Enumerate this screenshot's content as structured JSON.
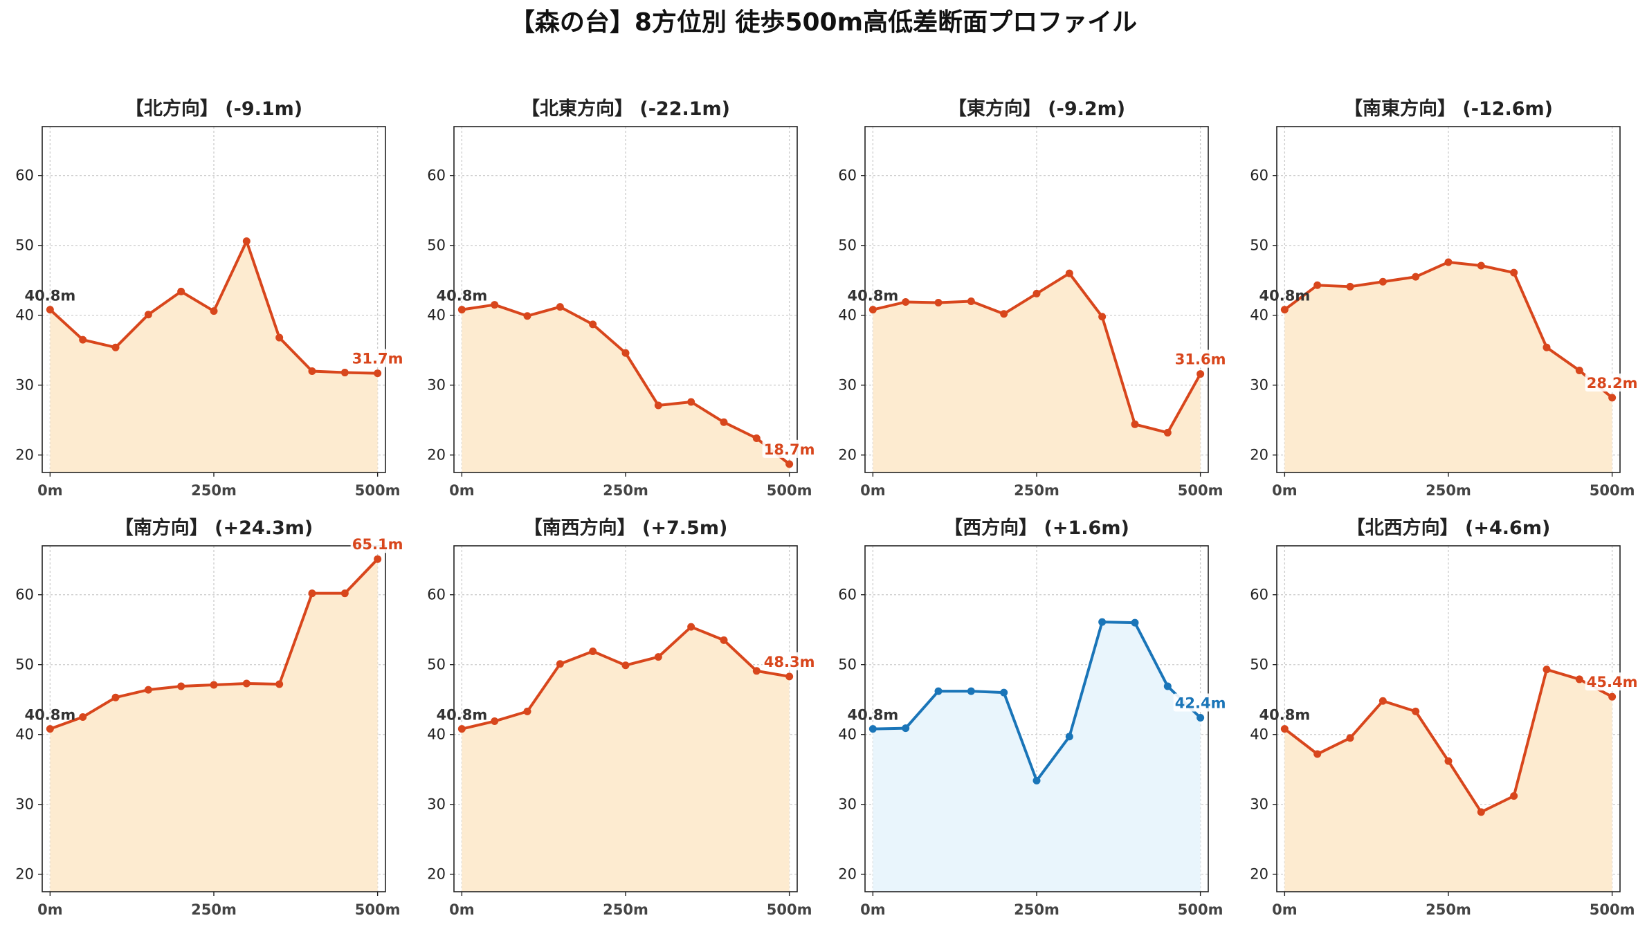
{
  "title": "【森の台】8方位別 徒歩500m高低差断面プロファイル",
  "colors": {
    "down": "#d8461c",
    "down_fill": "#fdebd0",
    "up": "#1a75b8",
    "up_fill": "#e9f5fc",
    "grid": "#cccccc"
  },
  "chart_data": [
    {
      "type": "area",
      "title": "【北方向】 (-9.1m)",
      "x": [
        0,
        50,
        100,
        150,
        200,
        250,
        300,
        350,
        400,
        450,
        500
      ],
      "y": [
        40.8,
        36.5,
        35.4,
        40.1,
        43.4,
        40.6,
        50.6,
        36.8,
        32.0,
        31.8,
        31.7
      ],
      "start_label": "40.8m",
      "end_label": "31.7m",
      "color": "#d8461c",
      "fill": "#fdebd0",
      "xticks": [
        "0m",
        "250m",
        "500m"
      ],
      "yticks": [
        20,
        30,
        40,
        50,
        60
      ],
      "ylim": [
        17.5,
        67
      ],
      "xlim": [
        -12,
        512
      ],
      "grid": true
    },
    {
      "type": "area",
      "title": "【北東方向】 (-22.1m)",
      "x": [
        0,
        50,
        100,
        150,
        200,
        250,
        300,
        350,
        400,
        450,
        500
      ],
      "y": [
        40.8,
        41.5,
        39.9,
        41.2,
        38.7,
        34.6,
        27.1,
        27.6,
        24.7,
        22.4,
        18.7
      ],
      "start_label": "40.8m",
      "end_label": "18.7m",
      "color": "#d8461c",
      "fill": "#fdebd0",
      "xticks": [
        "0m",
        "250m",
        "500m"
      ],
      "yticks": [
        20,
        30,
        40,
        50,
        60
      ],
      "ylim": [
        17.5,
        67
      ],
      "xlim": [
        -12,
        512
      ],
      "grid": true
    },
    {
      "type": "area",
      "title": "【東方向】 (-9.2m)",
      "x": [
        0,
        50,
        100,
        150,
        200,
        250,
        300,
        350,
        400,
        450,
        500
      ],
      "y": [
        40.8,
        41.9,
        41.8,
        42.0,
        40.2,
        43.1,
        46.0,
        39.8,
        24.4,
        23.2,
        31.6
      ],
      "start_label": "40.8m",
      "end_label": "31.6m",
      "color": "#d8461c",
      "fill": "#fdebd0",
      "xticks": [
        "0m",
        "250m",
        "500m"
      ],
      "yticks": [
        20,
        30,
        40,
        50,
        60
      ],
      "ylim": [
        17.5,
        67
      ],
      "xlim": [
        -12,
        512
      ],
      "grid": true
    },
    {
      "type": "area",
      "title": "【南東方向】 (-12.6m)",
      "x": [
        0,
        50,
        100,
        150,
        200,
        250,
        300,
        350,
        400,
        450,
        500
      ],
      "y": [
        40.8,
        44.3,
        44.1,
        44.8,
        45.5,
        47.6,
        47.1,
        46.1,
        35.4,
        32.1,
        28.2
      ],
      "start_label": "40.8m",
      "end_label": "28.2m",
      "color": "#d8461c",
      "fill": "#fdebd0",
      "xticks": [
        "0m",
        "250m",
        "500m"
      ],
      "yticks": [
        20,
        30,
        40,
        50,
        60
      ],
      "ylim": [
        17.5,
        67
      ],
      "xlim": [
        -12,
        512
      ],
      "grid": true
    },
    {
      "type": "area",
      "title": "【南方向】 (+24.3m)",
      "x": [
        0,
        50,
        100,
        150,
        200,
        250,
        300,
        350,
        400,
        450,
        500
      ],
      "y": [
        40.8,
        42.5,
        45.3,
        46.4,
        46.9,
        47.1,
        47.3,
        47.2,
        60.2,
        60.2,
        65.1
      ],
      "start_label": "40.8m",
      "end_label": "65.1m",
      "color": "#d8461c",
      "fill": "#fdebd0",
      "xticks": [
        "0m",
        "250m",
        "500m"
      ],
      "yticks": [
        20,
        30,
        40,
        50,
        60
      ],
      "ylim": [
        17.5,
        67
      ],
      "xlim": [
        -12,
        512
      ],
      "grid": true
    },
    {
      "type": "area",
      "title": "【南西方向】 (+7.5m)",
      "x": [
        0,
        50,
        100,
        150,
        200,
        250,
        300,
        350,
        400,
        450,
        500
      ],
      "y": [
        40.8,
        41.9,
        43.3,
        50.1,
        51.9,
        49.9,
        51.1,
        55.4,
        53.5,
        49.1,
        48.3
      ],
      "start_label": "40.8m",
      "end_label": "48.3m",
      "color": "#d8461c",
      "fill": "#fdebd0",
      "xticks": [
        "0m",
        "250m",
        "500m"
      ],
      "yticks": [
        20,
        30,
        40,
        50,
        60
      ],
      "ylim": [
        17.5,
        67
      ],
      "xlim": [
        -12,
        512
      ],
      "grid": true
    },
    {
      "type": "area",
      "title": "【西方向】 (+1.6m)",
      "x": [
        0,
        50,
        100,
        150,
        200,
        250,
        300,
        350,
        400,
        450,
        500
      ],
      "y": [
        40.8,
        40.9,
        46.2,
        46.2,
        46.0,
        33.4,
        39.7,
        56.1,
        56.0,
        46.9,
        42.4
      ],
      "start_label": "40.8m",
      "end_label": "42.4m",
      "color": "#1a75b8",
      "fill": "#e9f5fc",
      "xticks": [
        "0m",
        "250m",
        "500m"
      ],
      "yticks": [
        20,
        30,
        40,
        50,
        60
      ],
      "ylim": [
        17.5,
        67
      ],
      "xlim": [
        -12,
        512
      ],
      "grid": true
    },
    {
      "type": "area",
      "title": "【北西方向】 (+4.6m)",
      "x": [
        0,
        50,
        100,
        150,
        200,
        250,
        300,
        350,
        400,
        450,
        500
      ],
      "y": [
        40.8,
        37.2,
        39.5,
        44.8,
        43.3,
        36.2,
        28.9,
        31.2,
        49.3,
        47.9,
        45.4
      ],
      "start_label": "40.8m",
      "end_label": "45.4m",
      "color": "#d8461c",
      "fill": "#fdebd0",
      "xticks": [
        "0m",
        "250m",
        "500m"
      ],
      "yticks": [
        20,
        30,
        40,
        50,
        60
      ],
      "ylim": [
        17.5,
        67
      ],
      "xlim": [
        -12,
        512
      ],
      "grid": true
    }
  ]
}
